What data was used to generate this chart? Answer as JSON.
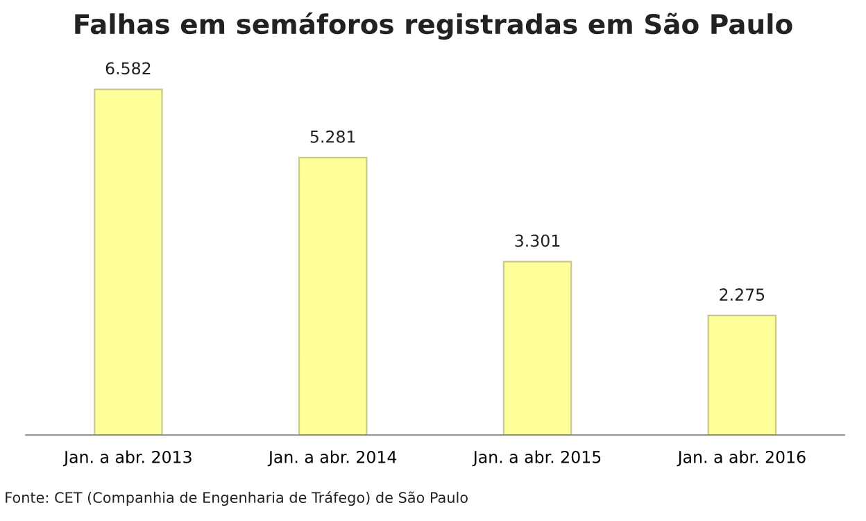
{
  "chart_data": {
    "type": "bar",
    "title": "Falhas em semáforos registradas em São Paulo",
    "categories": [
      "Jan. a abr. 2013",
      "Jan. a abr. 2014",
      "Jan. a abr. 2015",
      "Jan. a abr. 2016"
    ],
    "values": [
      6582,
      5281,
      3301,
      2275
    ],
    "value_labels": [
      "6.582",
      "5.281",
      "3.301",
      "2.275"
    ],
    "color": "#ffff99",
    "annotations": [
      "Fonte: CET (Companhia de Engenharia de Tráfego) de São Paulo"
    ],
    "grid": false,
    "legend": false
  }
}
